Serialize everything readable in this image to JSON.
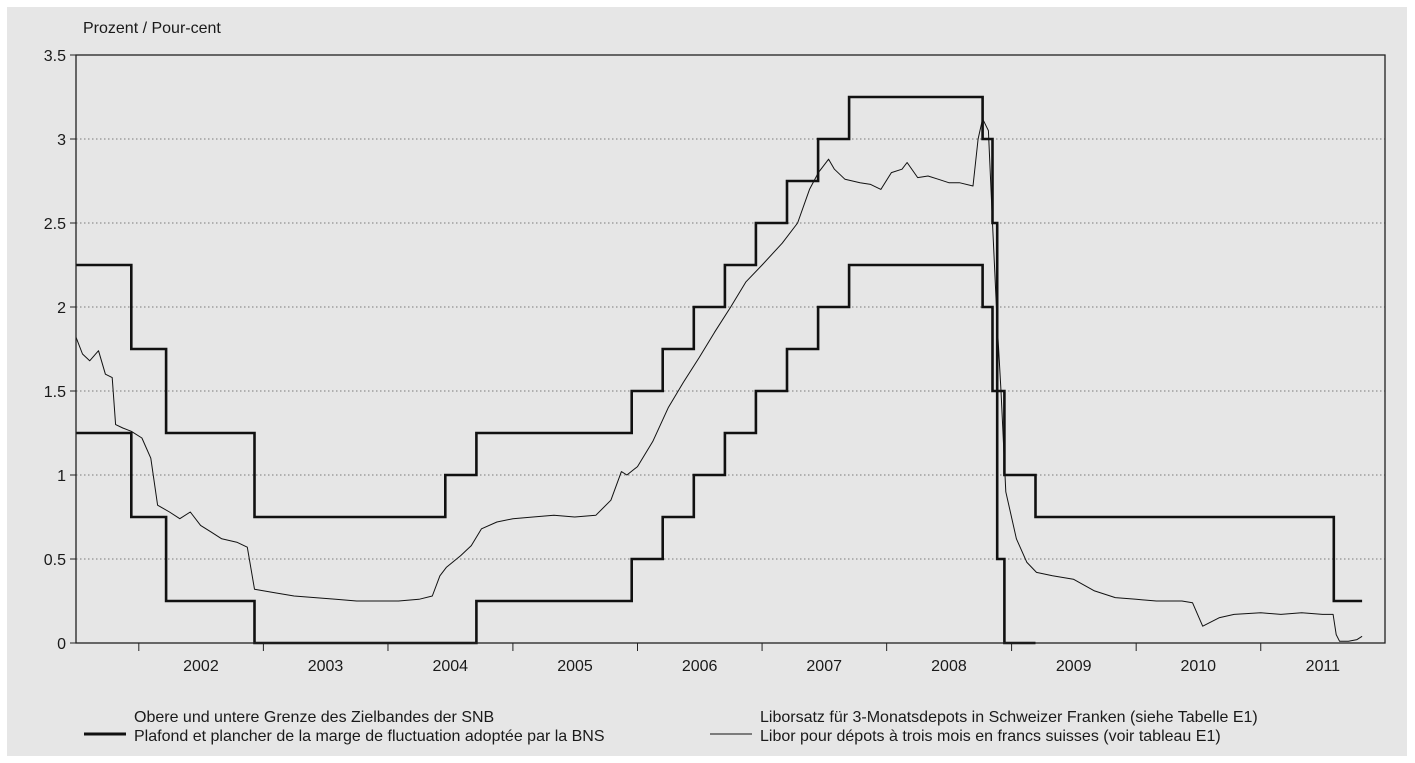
{
  "chart_data": {
    "type": "line",
    "ylabel": "Prozent / Pour-cent",
    "ylim": [
      0,
      3.5
    ],
    "yticks": [
      "0",
      "0.5",
      "1",
      "1.5",
      "2",
      "2.5",
      "3",
      "3.5"
    ],
    "x_categories": [
      "2002",
      "2003",
      "2004",
      "2005",
      "2006",
      "2007",
      "2008",
      "2009",
      "2010",
      "2011"
    ],
    "xlim": [
      "2001-07-01",
      "2011-12-31"
    ],
    "grid": "horizontal-dotted",
    "legend_position": "bottom",
    "series": [
      {
        "name": "Obere und untere Grenze des Zielbandes der SNB / Plafond et plancher de la marge de fluctuation adoptée par la BNS",
        "style": "thick",
        "color": "#111111",
        "bands": [
          {
            "name": "upper",
            "points": [
              [
                "2001-07-01",
                2.25
              ],
              [
                "2001-12-10",
                2.25
              ],
              [
                "2001-12-10",
                1.75
              ],
              [
                "2002-03-22",
                1.75
              ],
              [
                "2002-03-22",
                1.25
              ],
              [
                "2002-12-06",
                1.25
              ],
              [
                "2002-12-06",
                0.75
              ],
              [
                "2004-06-17",
                0.75
              ],
              [
                "2004-06-17",
                1.0
              ],
              [
                "2004-09-16",
                1.0
              ],
              [
                "2004-09-16",
                1.25
              ],
              [
                "2005-12-15",
                1.25
              ],
              [
                "2005-12-15",
                1.5
              ],
              [
                "2006-03-16",
                1.5
              ],
              [
                "2006-03-16",
                1.75
              ],
              [
                "2006-06-15",
                1.75
              ],
              [
                "2006-06-15",
                2.0
              ],
              [
                "2006-09-14",
                2.0
              ],
              [
                "2006-09-14",
                2.25
              ],
              [
                "2006-12-14",
                2.25
              ],
              [
                "2006-12-14",
                2.5
              ],
              [
                "2007-03-15",
                2.5
              ],
              [
                "2007-03-15",
                2.75
              ],
              [
                "2007-06-14",
                2.75
              ],
              [
                "2007-06-14",
                3.0
              ],
              [
                "2007-09-13",
                3.0
              ],
              [
                "2007-09-13",
                3.25
              ],
              [
                "2008-10-08",
                3.25
              ],
              [
                "2008-10-08",
                3.0
              ],
              [
                "2008-11-06",
                3.0
              ],
              [
                "2008-11-06",
                2.5
              ],
              [
                "2008-11-20",
                2.5
              ],
              [
                "2008-11-20",
                1.5
              ],
              [
                "2008-12-11",
                1.5
              ],
              [
                "2008-12-11",
                1.0
              ],
              [
                "2009-03-12",
                1.0
              ],
              [
                "2009-03-12",
                0.75
              ],
              [
                "2011-08-03",
                0.75
              ],
              [
                "2011-08-03",
                0.25
              ],
              [
                "2011-10-25",
                0.25
              ]
            ]
          },
          {
            "name": "lower",
            "points": [
              [
                "2001-07-01",
                1.25
              ],
              [
                "2001-12-10",
                1.25
              ],
              [
                "2001-12-10",
                0.75
              ],
              [
                "2002-03-22",
                0.75
              ],
              [
                "2002-03-22",
                0.25
              ],
              [
                "2002-12-06",
                0.25
              ],
              [
                "2002-12-06",
                0.0
              ],
              [
                "2004-09-16",
                0.0
              ],
              [
                "2004-09-16",
                0.25
              ],
              [
                "2005-12-15",
                0.25
              ],
              [
                "2005-12-15",
                0.5
              ],
              [
                "2006-03-16",
                0.5
              ],
              [
                "2006-03-16",
                0.75
              ],
              [
                "2006-06-15",
                0.75
              ],
              [
                "2006-06-15",
                1.0
              ],
              [
                "2006-09-14",
                1.0
              ],
              [
                "2006-09-14",
                1.25
              ],
              [
                "2006-12-14",
                1.25
              ],
              [
                "2006-12-14",
                1.5
              ],
              [
                "2007-03-15",
                1.5
              ],
              [
                "2007-03-15",
                1.75
              ],
              [
                "2007-06-14",
                1.75
              ],
              [
                "2007-06-14",
                2.0
              ],
              [
                "2007-09-13",
                2.0
              ],
              [
                "2007-09-13",
                2.25
              ],
              [
                "2008-10-08",
                2.25
              ],
              [
                "2008-10-08",
                2.0
              ],
              [
                "2008-11-06",
                2.0
              ],
              [
                "2008-11-06",
                1.5
              ],
              [
                "2008-11-20",
                1.5
              ],
              [
                "2008-11-20",
                0.5
              ],
              [
                "2008-12-11",
                0.5
              ],
              [
                "2008-12-11",
                0.0
              ],
              [
                "2009-03-12",
                0.0
              ]
            ]
          }
        ]
      },
      {
        "name": "Liborsatz für 3-Monatsdepots in Schweizer Franken (siehe Tabelle E1) / Libor pour dépots à trois mois en francs suisses (voir tableau E1)",
        "style": "thin",
        "color": "#111111",
        "points": [
          [
            "2001-07-01",
            1.82
          ],
          [
            "2001-07-20",
            1.72
          ],
          [
            "2001-08-10",
            1.68
          ],
          [
            "2001-09-05",
            1.74
          ],
          [
            "2001-09-25",
            1.6
          ],
          [
            "2001-10-15",
            1.58
          ],
          [
            "2001-10-25",
            1.3
          ],
          [
            "2001-11-15",
            1.28
          ],
          [
            "2001-12-10",
            1.26
          ],
          [
            "2002-01-10",
            1.22
          ],
          [
            "2002-02-05",
            1.1
          ],
          [
            "2002-02-25",
            0.82
          ],
          [
            "2002-04-01",
            0.78
          ],
          [
            "2002-05-01",
            0.74
          ],
          [
            "2002-06-01",
            0.78
          ],
          [
            "2002-07-01",
            0.7
          ],
          [
            "2002-08-01",
            0.66
          ],
          [
            "2002-09-01",
            0.62
          ],
          [
            "2002-10-15",
            0.6
          ],
          [
            "2002-11-15",
            0.57
          ],
          [
            "2002-12-06",
            0.32
          ],
          [
            "2003-02-01",
            0.3
          ],
          [
            "2003-04-01",
            0.28
          ],
          [
            "2003-06-01",
            0.27
          ],
          [
            "2003-08-01",
            0.26
          ],
          [
            "2003-10-01",
            0.25
          ],
          [
            "2003-12-01",
            0.25
          ],
          [
            "2004-02-01",
            0.25
          ],
          [
            "2004-04-01",
            0.26
          ],
          [
            "2004-05-10",
            0.28
          ],
          [
            "2004-06-01",
            0.4
          ],
          [
            "2004-06-20",
            0.45
          ],
          [
            "2004-08-01",
            0.52
          ],
          [
            "2004-09-01",
            0.58
          ],
          [
            "2004-10-01",
            0.68
          ],
          [
            "2004-11-15",
            0.72
          ],
          [
            "2005-01-01",
            0.74
          ],
          [
            "2005-03-01",
            0.75
          ],
          [
            "2005-05-01",
            0.76
          ],
          [
            "2005-07-01",
            0.75
          ],
          [
            "2005-09-01",
            0.76
          ],
          [
            "2005-10-15",
            0.85
          ],
          [
            "2005-11-15",
            1.02
          ],
          [
            "2005-12-01",
            1.0
          ],
          [
            "2006-01-01",
            1.05
          ],
          [
            "2006-02-15",
            1.2
          ],
          [
            "2006-04-01",
            1.4
          ],
          [
            "2006-05-15",
            1.55
          ],
          [
            "2006-07-01",
            1.7
          ],
          [
            "2006-08-15",
            1.85
          ],
          [
            "2006-10-01",
            2.0
          ],
          [
            "2006-11-15",
            2.15
          ],
          [
            "2007-01-01",
            2.25
          ],
          [
            "2007-03-01",
            2.38
          ],
          [
            "2007-04-15",
            2.5
          ],
          [
            "2007-05-20",
            2.7
          ],
          [
            "2007-06-15",
            2.8
          ],
          [
            "2007-07-15",
            2.88
          ],
          [
            "2007-08-01",
            2.82
          ],
          [
            "2007-09-01",
            2.76
          ],
          [
            "2007-10-15",
            2.74
          ],
          [
            "2007-11-15",
            2.73
          ],
          [
            "2007-12-15",
            2.7
          ],
          [
            "2008-01-15",
            2.8
          ],
          [
            "2008-02-15",
            2.82
          ],
          [
            "2008-03-01",
            2.86
          ],
          [
            "2008-04-01",
            2.77
          ],
          [
            "2008-05-01",
            2.78
          ],
          [
            "2008-06-01",
            2.76
          ],
          [
            "2008-07-01",
            2.74
          ],
          [
            "2008-08-01",
            2.74
          ],
          [
            "2008-09-10",
            2.72
          ],
          [
            "2008-09-25",
            3.0
          ],
          [
            "2008-10-08",
            3.12
          ],
          [
            "2008-10-25",
            3.05
          ],
          [
            "2008-11-06",
            2.5
          ],
          [
            "2008-11-20",
            1.9
          ],
          [
            "2008-12-01",
            1.5
          ],
          [
            "2008-12-15",
            0.9
          ],
          [
            "2009-01-15",
            0.62
          ],
          [
            "2009-02-15",
            0.48
          ],
          [
            "2009-03-15",
            0.42
          ],
          [
            "2009-05-01",
            0.4
          ],
          [
            "2009-07-01",
            0.38
          ],
          [
            "2009-09-01",
            0.31
          ],
          [
            "2009-11-01",
            0.27
          ],
          [
            "2010-01-01",
            0.26
          ],
          [
            "2010-03-01",
            0.25
          ],
          [
            "2010-05-15",
            0.25
          ],
          [
            "2010-06-15",
            0.24
          ],
          [
            "2010-07-15",
            0.1
          ],
          [
            "2010-09-01",
            0.15
          ],
          [
            "2010-10-15",
            0.17
          ],
          [
            "2011-01-01",
            0.18
          ],
          [
            "2011-03-01",
            0.17
          ],
          [
            "2011-05-01",
            0.18
          ],
          [
            "2011-07-01",
            0.17
          ],
          [
            "2011-08-01",
            0.17
          ],
          [
            "2011-08-10",
            0.05
          ],
          [
            "2011-08-20",
            0.01
          ],
          [
            "2011-09-15",
            0.01
          ],
          [
            "2011-10-10",
            0.02
          ],
          [
            "2011-10-25",
            0.04
          ]
        ]
      }
    ],
    "legend": [
      {
        "line1": "Obere und untere Grenze des Zielbandes der SNB",
        "line2": "Plafond et plancher de la marge de fluctuation adoptée par la BNS",
        "style": "thick"
      },
      {
        "line1": "Liborsatz für 3-Monatsdepots in Schweizer Franken (siehe Tabelle E1)",
        "line2": "Libor pour dépots à trois mois en francs suisses (voir tableau E1)",
        "style": "thin"
      }
    ]
  }
}
